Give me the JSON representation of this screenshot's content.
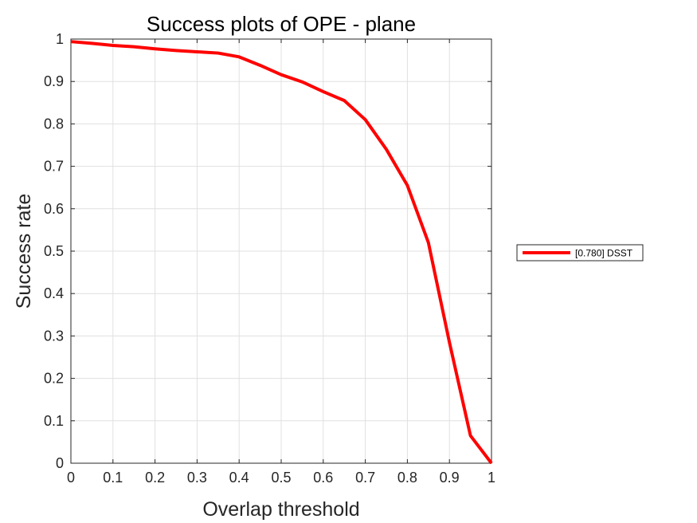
{
  "chart_data": {
    "type": "line",
    "title": "Success plots of OPE - plane",
    "xlabel": "Overlap threshold",
    "ylabel": "Success rate",
    "xlim": [
      0,
      1
    ],
    "ylim": [
      0,
      1
    ],
    "xticks": [
      "0",
      "0.1",
      "0.2",
      "0.3",
      "0.4",
      "0.5",
      "0.6",
      "0.7",
      "0.8",
      "0.9",
      "1"
    ],
    "yticks": [
      "0",
      "0.1",
      "0.2",
      "0.3",
      "0.4",
      "0.5",
      "0.6",
      "0.7",
      "0.8",
      "0.9",
      "1"
    ],
    "grid": true,
    "legend_position": "outside-right",
    "series": [
      {
        "name": "[0.780] DSST",
        "color": "#ff0000",
        "x": [
          0,
          0.05,
          0.1,
          0.15,
          0.2,
          0.25,
          0.3,
          0.35,
          0.4,
          0.45,
          0.5,
          0.55,
          0.6,
          0.65,
          0.7,
          0.75,
          0.8,
          0.85,
          0.9,
          0.95,
          1.0
        ],
        "y": [
          0.994,
          0.99,
          0.985,
          0.982,
          0.977,
          0.973,
          0.97,
          0.967,
          0.958,
          0.938,
          0.916,
          0.899,
          0.876,
          0.855,
          0.81,
          0.74,
          0.655,
          0.52,
          0.285,
          0.065,
          0.0
        ]
      }
    ]
  }
}
